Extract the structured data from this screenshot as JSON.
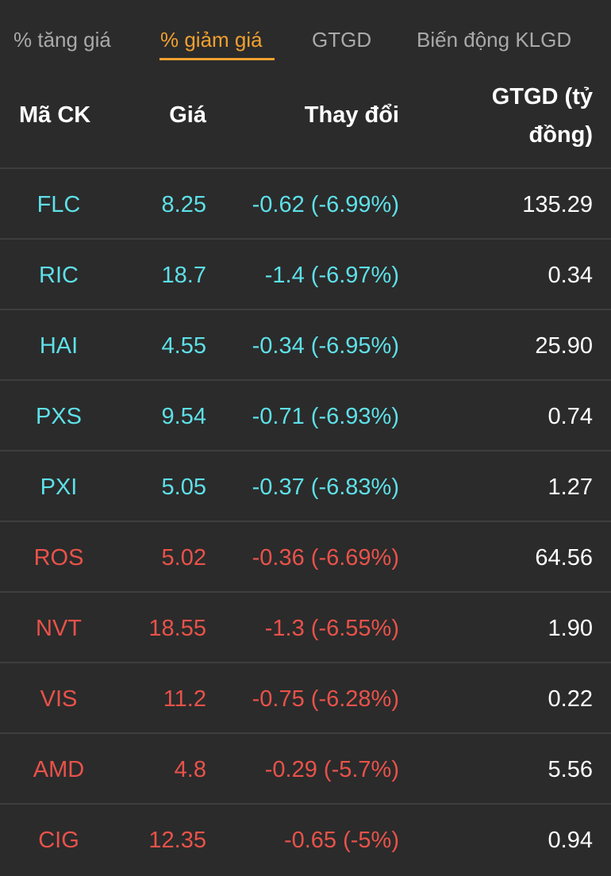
{
  "tabs": [
    {
      "label": "% tăng giá",
      "active": false
    },
    {
      "label": "% giảm giá",
      "active": true
    },
    {
      "label": "GTGD",
      "active": false
    },
    {
      "label": "Biến động KLGD",
      "active": false
    }
  ],
  "colors": {
    "background": "#2b2b2b",
    "active_tab": "#f0a030",
    "floor_price": "#5ee0e8",
    "decrease": "#e9524a"
  },
  "table": {
    "headers": {
      "symbol": "Mã CK",
      "price": "Giá",
      "change": "Thay đổi",
      "value": "GTGD (tỷ đồng)"
    },
    "rows": [
      {
        "symbol": "FLC",
        "price": "8.25",
        "change": "-0.62 (-6.99%)",
        "value": "135.29",
        "color": "teal"
      },
      {
        "symbol": "RIC",
        "price": "18.7",
        "change": "-1.4 (-6.97%)",
        "value": "0.34",
        "color": "teal"
      },
      {
        "symbol": "HAI",
        "price": "4.55",
        "change": "-0.34 (-6.95%)",
        "value": "25.90",
        "color": "teal"
      },
      {
        "symbol": "PXS",
        "price": "9.54",
        "change": "-0.71 (-6.93%)",
        "value": "0.74",
        "color": "teal"
      },
      {
        "symbol": "PXI",
        "price": "5.05",
        "change": "-0.37 (-6.83%)",
        "value": "1.27",
        "color": "teal"
      },
      {
        "symbol": "ROS",
        "price": "5.02",
        "change": "-0.36 (-6.69%)",
        "value": "64.56",
        "color": "red"
      },
      {
        "symbol": "NVT",
        "price": "18.55",
        "change": "-1.3 (-6.55%)",
        "value": "1.90",
        "color": "red"
      },
      {
        "symbol": "VIS",
        "price": "11.2",
        "change": "-0.75 (-6.28%)",
        "value": "0.22",
        "color": "red"
      },
      {
        "symbol": "AMD",
        "price": "4.8",
        "change": "-0.29 (-5.7%)",
        "value": "5.56",
        "color": "red"
      },
      {
        "symbol": "CIG",
        "price": "12.35",
        "change": "-0.65 (-5%)",
        "value": "0.94",
        "color": "red"
      }
    ]
  }
}
